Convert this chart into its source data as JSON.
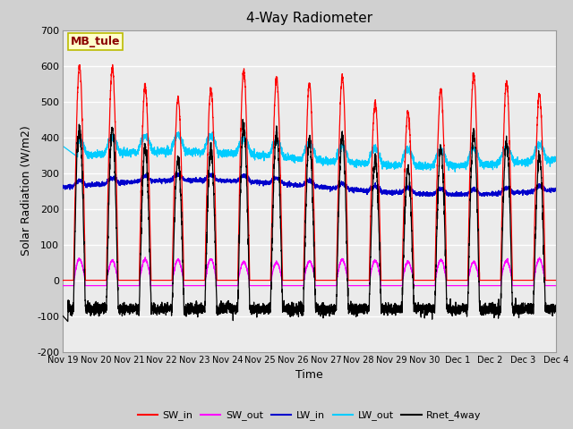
{
  "title": "4-Way Radiometer",
  "xlabel": "Time",
  "ylabel": "Solar Radiation (W/m2)",
  "ylim": [
    -200,
    700
  ],
  "xlim": [
    0,
    15.0
  ],
  "yticks": [
    -200,
    -100,
    0,
    100,
    200,
    300,
    400,
    500,
    600,
    700
  ],
  "xtick_labels": [
    "Nov 19",
    "Nov 20",
    "Nov 21",
    "Nov 22",
    "Nov 23",
    "Nov 24",
    "Nov 25",
    "Nov 26",
    "Nov 27",
    "Nov 28",
    "Nov 29",
    "Nov 30",
    "Dec 1",
    "Dec 2",
    "Dec 3",
    "Dec 4"
  ],
  "annotation_text": "MB_tule",
  "colors": {
    "SW_in": "#ff0000",
    "SW_out": "#ff00ff",
    "LW_in": "#0000cc",
    "LW_out": "#00ccff",
    "Rnet_4way": "#000000"
  },
  "legend_labels": [
    "SW_in",
    "SW_out",
    "LW_in",
    "LW_out",
    "Rnet_4way"
  ],
  "fig_bg": "#d0d0d0",
  "ax_bg": "#ebebeb",
  "grid_color": "#ffffff"
}
